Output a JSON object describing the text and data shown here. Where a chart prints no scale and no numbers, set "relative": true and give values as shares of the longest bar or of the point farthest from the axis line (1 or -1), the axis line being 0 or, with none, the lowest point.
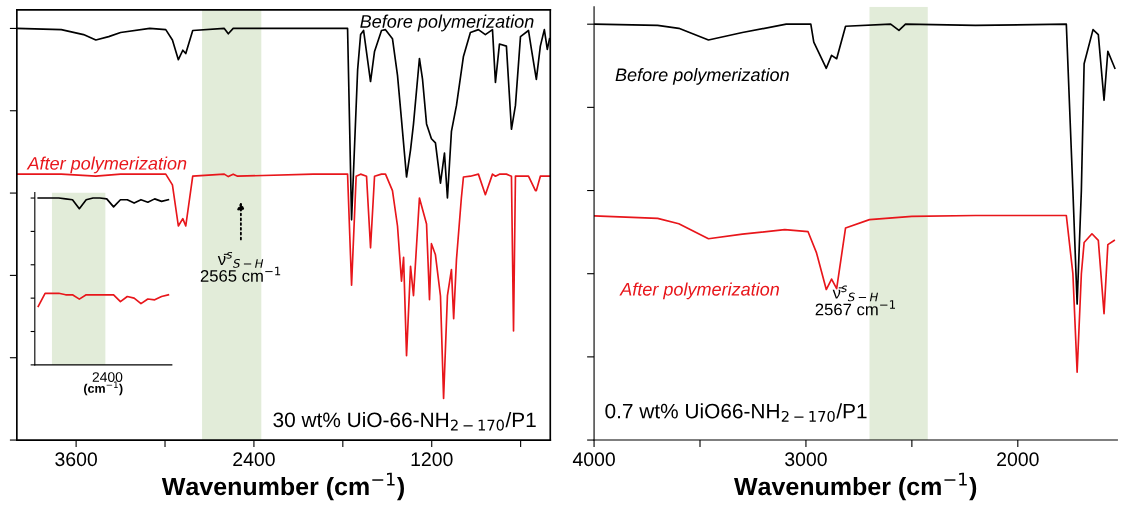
{
  "chart_data": [
    {
      "type": "line",
      "relative": true,
      "xlabel": "Wavenumber (cm$^{−1}$)",
      "xlim": [
        4000,
        400
      ],
      "xticks": [
        {
          "value": 3600,
          "label": "3600"
        },
        {
          "value": 3000,
          "label": null
        },
        {
          "value": 2400,
          "label": "2400"
        },
        {
          "value": 1800,
          "label": null
        },
        {
          "value": 1200,
          "label": "1200"
        },
        {
          "value": 600,
          "label": null
        }
      ],
      "tick_labels": "x",
      "grid": false,
      "legend": false,
      "series": [
        {
          "name": "Before polymerization",
          "color": "#000000",
          "x": [
            4000,
            3700,
            3550,
            3467,
            3380,
            3300,
            3103,
            2995,
            2950,
            2910,
            2880,
            2860,
            2813,
            2600,
            2573,
            2540,
            2000,
            1768,
            1741,
            1700,
            1680,
            1660,
            1613,
            1586,
            1539,
            1512,
            1465,
            1431,
            1404,
            1370,
            1343,
            1323,
            1283,
            1262,
            1235,
            1202,
            1175,
            1141,
            1114,
            1094,
            1067,
            1033,
            986,
            939,
            885,
            838,
            790,
            770,
            743,
            696,
            662,
            635,
            601,
            547,
            527,
            494,
            467,
            440,
            420,
            405
          ],
          "values": [
            1.0,
            0.997,
            0.985,
            0.972,
            0.98,
            0.99,
            1.0,
            0.997,
            0.972,
            0.924,
            0.947,
            0.939,
            0.995,
            1.0,
            0.987,
            1.0,
            1.0,
            1.0,
            0.535,
            0.9,
            0.985,
            0.995,
            0.871,
            0.944,
            0.995,
            0.997,
            0.975,
            0.886,
            0.778,
            0.639,
            0.705,
            0.768,
            0.927,
            0.876,
            0.768,
            0.732,
            0.722,
            0.624,
            0.697,
            0.588,
            0.75,
            0.813,
            0.932,
            0.99,
            0.997,
            0.985,
            0.997,
            0.869,
            0.962,
            0.957,
            0.755,
            0.813,
            0.98,
            0.995,
            0.949,
            0.876,
            0.957,
            0.997,
            0.949,
            0.975
          ]
        },
        {
          "name": "After polymerization",
          "color": "#e8161b",
          "x": [
            4000,
            3700,
            3467,
            3300,
            3103,
            2995,
            2950,
            2910,
            2880,
            2860,
            2813,
            2600,
            2573,
            2540,
            2510,
            2000,
            1768,
            1741,
            1710,
            1680,
            1640,
            1613,
            1586,
            1539,
            1512,
            1465,
            1431,
            1404,
            1390,
            1370,
            1343,
            1323,
            1283,
            1235,
            1215,
            1202,
            1175,
            1141,
            1120,
            1094,
            1067,
            1052,
            1033,
            1000,
            986,
            939,
            885,
            838,
            790,
            770,
            743,
            696,
            662,
            648,
            635,
            601,
            547,
            500,
            494,
            467,
            405
          ],
          "values": [
            0.646,
            0.646,
            0.641,
            0.646,
            0.646,
            0.646,
            0.62,
            0.52,
            0.538,
            0.52,
            0.641,
            0.646,
            0.64,
            0.646,
            0.641,
            0.646,
            0.646,
            0.376,
            0.641,
            0.646,
            0.641,
            0.467,
            0.641,
            0.646,
            0.646,
            0.606,
            0.52,
            0.386,
            0.444,
            0.205,
            0.422,
            0.351,
            0.588,
            0.525,
            0.341,
            0.477,
            0.45,
            0.35,
            0.101,
            0.351,
            0.414,
            0.295,
            0.439,
            0.588,
            0.639,
            0.641,
            0.646,
            0.596,
            0.646,
            0.641,
            0.646,
            0.646,
            0.641,
            0.265,
            0.641,
            0.641,
            0.641,
            0.606,
            0.606,
            0.641,
            0.641
          ]
        }
      ],
      "bands": [
        {
          "axis": "x",
          "from": 2750,
          "to": 2350,
          "color": "#e2ecd9"
        }
      ],
      "annotations": [
        "ν̄$^{s}$$_{S−H}$\n2565 cm$^{−1}$",
        "30 wt% UiO-66-NH$_{2−170}$/P1"
      ]
    },
    {
      "type": "line",
      "relative": true,
      "xlabel": "Wavenumber (cm$^{−1}$)",
      "xlim": [
        4000,
        1530
      ],
      "xticks": [
        {
          "value": 4000,
          "label": "4000"
        },
        {
          "value": 3500,
          "label": null
        },
        {
          "value": 3000,
          "label": "3000"
        },
        {
          "value": 2500,
          "label": null
        },
        {
          "value": 2000,
          "label": "2000"
        }
      ],
      "tick_labels": "x",
      "grid": false,
      "legend": false,
      "series": [
        {
          "name": "Before polymerization",
          "color": "#000000",
          "x": [
            4000,
            3700,
            3600,
            3460,
            3300,
            3093,
            2977,
            2963,
            2904,
            2879,
            2855,
            2813,
            2600,
            2561,
            2530,
            2200,
            1771,
            1740,
            1720,
            1700,
            1687,
            1645,
            1620,
            1593,
            1575,
            1542
          ],
          "values": [
            1.0,
            0.997,
            0.99,
            0.962,
            0.98,
            1.0,
            1.0,
            0.957,
            0.894,
            0.925,
            0.917,
            0.995,
            1.0,
            0.985,
            1.0,
            0.997,
            1.0,
            0.6,
            0.327,
            0.6,
            0.905,
            0.987,
            0.975,
            0.817,
            0.935,
            0.894
          ]
        },
        {
          "name": "After polymerization",
          "color": "#e8161b",
          "x": [
            4000,
            3700,
            3600,
            3460,
            3300,
            3100,
            2990,
            2950,
            2904,
            2879,
            2855,
            2813,
            2700,
            2500,
            2200,
            1771,
            1740,
            1720,
            1700,
            1687,
            1650,
            1620,
            1593,
            1575,
            1545
          ],
          "values": [
            0.539,
            0.533,
            0.52,
            0.484,
            0.495,
            0.506,
            0.501,
            0.45,
            0.362,
            0.387,
            0.364,
            0.51,
            0.53,
            0.538,
            0.54,
            0.54,
            0.4,
            0.163,
            0.4,
            0.475,
            0.496,
            0.48,
            0.304,
            0.47,
            0.48
          ]
        }
      ],
      "bands": [
        {
          "axis": "x",
          "from": 2700,
          "to": 2425,
          "color": "#e2ecd9"
        }
      ],
      "annotations": [
        "ν̄$^{s}$$_{S−H}$\n2567 cm$^{−1}$",
        "0.7 wt% UiO66-NH$_{2−170}$/P1"
      ]
    },
    {
      "type": "line",
      "relative": true,
      "xlabel": "(cm$^{−1}$)",
      "categories": [
        null,
        null,
        null,
        null,
        null,
        null,
        null,
        null,
        null,
        null,
        null,
        null,
        null,
        null,
        null,
        null,
        null,
        null,
        null,
        null
      ],
      "tick_labels": false,
      "grid": false,
      "legend": false,
      "series": [
        {
          "color": "#000000",
          "values": [
            1.0,
            1.0,
            1.0,
            1.0,
            0.995,
            0.99,
            0.936,
            0.99,
            1.0,
            1.0,
            0.995,
            0.947,
            0.99,
            0.99,
            0.97,
            0.99,
            0.975,
            0.995,
            0.98,
            0.99
          ]
        },
        {
          "color": "#e8161b",
          "values": [
            0.35,
            0.429,
            0.429,
            0.429,
            0.42,
            0.42,
            0.394,
            0.42,
            0.42,
            0.42,
            0.42,
            0.42,
            0.379,
            0.41,
            0.4,
            0.367,
            0.395,
            0.39,
            0.41,
            0.42
          ]
        }
      ],
      "annotations": [
        "2400"
      ]
    }
  ]
}
